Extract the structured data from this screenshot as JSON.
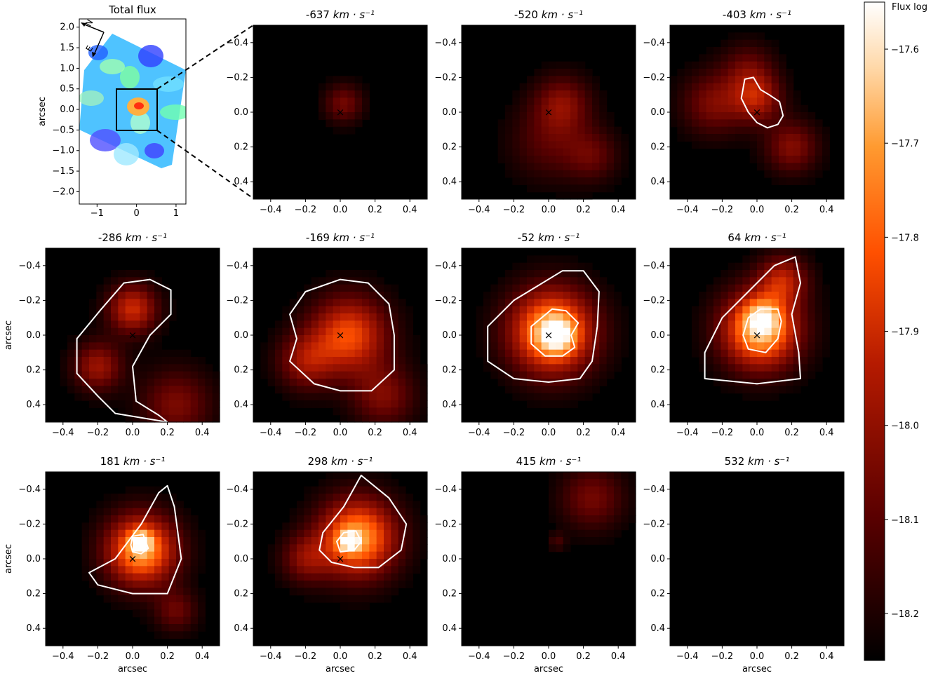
{
  "chart_data": {
    "type": "heatmap",
    "colormap": "gist_heat",
    "overview": {
      "title": "Total flux",
      "ylabel": "arcsec",
      "xlim": [
        -1.45,
        1.25
      ],
      "ylim": [
        -2.3,
        2.2
      ],
      "xticks": [
        "−1",
        "0",
        "1"
      ],
      "yticks": [
        "2.0",
        "1.5",
        "1.0",
        "0.5",
        "0.0",
        "−0.5",
        "−1.0",
        "−1.5",
        "−2.0"
      ],
      "compass": {
        "north": "N",
        "east": "E"
      },
      "zoom_box_x": [
        -0.5,
        0.5
      ],
      "zoom_box_y": [
        -0.5,
        0.5
      ],
      "colormap": "rainbow"
    },
    "panel_axes": {
      "xlim": [
        -0.5,
        0.5
      ],
      "ylim": [
        -0.5,
        0.5
      ],
      "ticks": [
        "−0.4",
        "−0.2",
        "0.0",
        "0.2",
        "0.4"
      ],
      "xlabel": "arcsec",
      "ylabel": "arcsec",
      "marker": "×",
      "contour_color": "#ffffff"
    },
    "panels": [
      {
        "velocity": "-637",
        "unit": "km · s⁻¹",
        "peak": 0.28,
        "blobs": [
          [
            0.02,
            0.05,
            0.11,
            0.28
          ]
        ],
        "contours": []
      },
      {
        "velocity": "-520",
        "unit": "km · s⁻¹",
        "peak": 0.33,
        "blobs": [
          [
            0.08,
            0.05,
            0.16,
            0.3
          ],
          [
            0.0,
            -0.17,
            0.22,
            0.2
          ],
          [
            0.25,
            -0.25,
            0.15,
            0.22
          ]
        ],
        "contours": []
      },
      {
        "velocity": "-403",
        "unit": "km · s⁻¹",
        "peak": 0.42,
        "blobs": [
          [
            0.0,
            0.08,
            0.14,
            0.4
          ],
          [
            -0.25,
            0.05,
            0.18,
            0.3
          ],
          [
            0.2,
            -0.2,
            0.15,
            0.32
          ],
          [
            -0.05,
            0.25,
            0.15,
            0.22
          ]
        ],
        "contours": [
          {
            "level": "inner",
            "points": [
              [
                -0.07,
                0.19
              ],
              [
                -0.02,
                0.2
              ],
              [
                0.02,
                0.13
              ],
              [
                0.07,
                0.1
              ],
              [
                0.13,
                0.06
              ],
              [
                0.15,
                -0.02
              ],
              [
                0.12,
                -0.07
              ],
              [
                0.06,
                -0.09
              ],
              [
                0.0,
                -0.06
              ],
              [
                -0.05,
                0.0
              ],
              [
                -0.09,
                0.08
              ]
            ]
          }
        ]
      },
      {
        "velocity": "-286",
        "unit": "km · s⁻¹",
        "peak": 0.5,
        "blobs": [
          [
            0.0,
            0.15,
            0.14,
            0.5
          ],
          [
            -0.2,
            -0.18,
            0.14,
            0.38
          ],
          [
            0.25,
            -0.4,
            0.2,
            0.3
          ]
        ],
        "contours": [
          {
            "level": "outer",
            "points": [
              [
                0.1,
                0.32
              ],
              [
                0.22,
                0.26
              ],
              [
                0.22,
                0.12
              ],
              [
                0.1,
                0.0
              ],
              [
                0.0,
                -0.18
              ],
              [
                0.02,
                -0.38
              ],
              [
                0.15,
                -0.46
              ],
              [
                0.2,
                -0.5
              ],
              [
                -0.1,
                -0.45
              ],
              [
                -0.2,
                -0.35
              ],
              [
                -0.32,
                -0.22
              ],
              [
                -0.32,
                -0.02
              ],
              [
                -0.18,
                0.15
              ],
              [
                -0.05,
                0.3
              ]
            ]
          }
        ]
      },
      {
        "velocity": "-169",
        "unit": "km · s⁻¹",
        "peak": 0.55,
        "blobs": [
          [
            0.05,
            0.0,
            0.22,
            0.6
          ],
          [
            -0.2,
            -0.15,
            0.16,
            0.35
          ],
          [
            0.25,
            -0.35,
            0.18,
            0.3
          ]
        ],
        "contours": [
          {
            "level": "outer",
            "points": [
              [
                0.0,
                0.32
              ],
              [
                0.16,
                0.3
              ],
              [
                0.28,
                0.18
              ],
              [
                0.31,
                0.0
              ],
              [
                0.31,
                -0.2
              ],
              [
                0.18,
                -0.32
              ],
              [
                0.0,
                -0.32
              ],
              [
                -0.15,
                -0.28
              ],
              [
                -0.29,
                -0.15
              ],
              [
                -0.25,
                -0.02
              ],
              [
                -0.29,
                0.12
              ],
              [
                -0.2,
                0.25
              ]
            ]
          }
        ]
      },
      {
        "velocity": "-52",
        "unit": "km · s⁻¹",
        "peak": 0.75,
        "blobs": [
          [
            0.02,
            0.02,
            0.24,
            0.85
          ],
          [
            0.05,
            0.0,
            0.1,
            0.35
          ]
        ],
        "contours": [
          {
            "level": "outer",
            "points": [
              [
                0.08,
                0.37
              ],
              [
                0.2,
                0.37
              ],
              [
                0.29,
                0.25
              ],
              [
                0.28,
                0.05
              ],
              [
                0.25,
                -0.15
              ],
              [
                0.18,
                -0.25
              ],
              [
                0.0,
                -0.27
              ],
              [
                -0.2,
                -0.25
              ],
              [
                -0.35,
                -0.15
              ],
              [
                -0.35,
                0.05
              ],
              [
                -0.2,
                0.2
              ]
            ]
          },
          {
            "level": "inner",
            "points": [
              [
                0.02,
                0.15
              ],
              [
                0.1,
                0.14
              ],
              [
                0.17,
                0.07
              ],
              [
                0.13,
                0.0
              ],
              [
                0.15,
                -0.07
              ],
              [
                0.08,
                -0.12
              ],
              [
                -0.02,
                -0.12
              ],
              [
                -0.1,
                -0.05
              ],
              [
                -0.1,
                0.05
              ]
            ]
          }
        ]
      },
      {
        "velocity": "64",
        "unit": "km · s⁻¹",
        "peak": 0.8,
        "blobs": [
          [
            0.02,
            0.03,
            0.22,
            0.85
          ],
          [
            0.15,
            0.32,
            0.14,
            0.4
          ],
          [
            0.03,
            0.1,
            0.1,
            0.3
          ]
        ],
        "contours": [
          {
            "level": "outer",
            "points": [
              [
                0.22,
                0.45
              ],
              [
                0.25,
                0.3
              ],
              [
                0.2,
                0.12
              ],
              [
                0.24,
                -0.1
              ],
              [
                0.25,
                -0.25
              ],
              [
                0.0,
                -0.28
              ],
              [
                -0.3,
                -0.25
              ],
              [
                -0.3,
                -0.1
              ],
              [
                -0.2,
                0.1
              ],
              [
                -0.05,
                0.25
              ],
              [
                0.1,
                0.4
              ]
            ]
          },
          {
            "level": "inner",
            "points": [
              [
                0.02,
                0.15
              ],
              [
                0.12,
                0.15
              ],
              [
                0.14,
                0.08
              ],
              [
                0.12,
                -0.02
              ],
              [
                0.05,
                -0.1
              ],
              [
                -0.05,
                -0.08
              ],
              [
                -0.08,
                0.0
              ],
              [
                -0.05,
                0.1
              ]
            ]
          }
        ]
      },
      {
        "velocity": "181",
        "unit": "km · s⁻¹",
        "peak": 0.85,
        "blobs": [
          [
            0.05,
            0.05,
            0.2,
            0.8
          ],
          [
            0.05,
            0.1,
            0.06,
            0.4
          ],
          [
            0.25,
            -0.3,
            0.12,
            0.25
          ]
        ],
        "contours": [
          {
            "level": "outer",
            "points": [
              [
                0.15,
                0.38
              ],
              [
                0.2,
                0.42
              ],
              [
                0.24,
                0.3
              ],
              [
                0.26,
                0.15
              ],
              [
                0.28,
                0.0
              ],
              [
                0.2,
                -0.2
              ],
              [
                0.0,
                -0.2
              ],
              [
                -0.2,
                -0.15
              ],
              [
                -0.25,
                -0.08
              ],
              [
                -0.1,
                0.0
              ],
              [
                0.05,
                0.2
              ]
            ]
          },
          {
            "level": "inner",
            "points": [
              [
                0.0,
                0.13
              ],
              [
                0.06,
                0.14
              ],
              [
                0.09,
                0.06
              ],
              [
                0.05,
                0.03
              ],
              [
                0.0,
                0.04
              ],
              [
                -0.01,
                0.08
              ]
            ]
          }
        ]
      },
      {
        "velocity": "298",
        "unit": "km · s⁻¹",
        "peak": 0.85,
        "blobs": [
          [
            0.1,
            0.12,
            0.22,
            0.8
          ],
          [
            0.05,
            0.1,
            0.06,
            0.4
          ],
          [
            -0.2,
            0.0,
            0.14,
            0.3
          ]
        ],
        "contours": [
          {
            "level": "outer",
            "points": [
              [
                0.12,
                0.48
              ],
              [
                0.28,
                0.35
              ],
              [
                0.38,
                0.2
              ],
              [
                0.35,
                0.05
              ],
              [
                0.22,
                -0.05
              ],
              [
                0.08,
                -0.05
              ],
              [
                -0.05,
                -0.02
              ],
              [
                -0.12,
                0.05
              ],
              [
                -0.1,
                0.15
              ],
              [
                0.02,
                0.3
              ]
            ]
          },
          {
            "level": "inner",
            "points": [
              [
                0.02,
                0.15
              ],
              [
                0.09,
                0.16
              ],
              [
                0.12,
                0.1
              ],
              [
                0.08,
                0.05
              ],
              [
                0.0,
                0.04
              ],
              [
                -0.02,
                0.1
              ]
            ]
          }
        ]
      },
      {
        "velocity": "415",
        "unit": "km · s⁻¹",
        "peak": 0.28,
        "blobs": [
          [
            0.25,
            0.35,
            0.18,
            0.28
          ],
          [
            0.05,
            0.1,
            0.05,
            0.15
          ]
        ],
        "contours": []
      },
      {
        "velocity": "532",
        "unit": "km · s⁻¹",
        "peak": 0.0,
        "blobs": [],
        "contours": []
      }
    ],
    "colorbar": {
      "label": "Flux log",
      "ticks": [
        "−17.6",
        "−17.7",
        "−17.8",
        "−17.9",
        "−18.0",
        "−18.1",
        "−18.2"
      ],
      "tick_values": [
        -17.6,
        -17.7,
        -17.8,
        -17.9,
        -18.0,
        -18.1,
        -18.2
      ],
      "range": [
        -18.25,
        -17.55
      ]
    }
  }
}
